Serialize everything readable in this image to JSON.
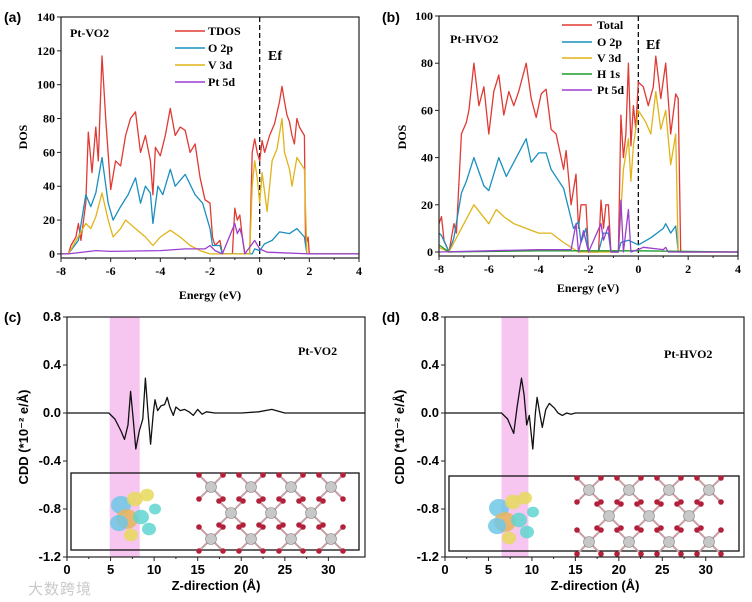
{
  "watermark": "大数跨境",
  "chart_data": [
    {
      "panel_label": "(a)",
      "type": "line",
      "title": "Pt-VO2",
      "xlabel": "Energy (eV)",
      "ylabel": "DOS",
      "xlim": [
        -8,
        4
      ],
      "ylim": [
        -2.4,
        140
      ],
      "xticks": [
        -8,
        -6,
        -4,
        -2,
        0,
        2,
        4
      ],
      "xtick_labels": [
        "-8",
        "-6",
        "-4",
        "-2",
        "0",
        "2",
        "4"
      ],
      "yticks": [
        0,
        20,
        40,
        60,
        80,
        100,
        120,
        140
      ],
      "ytick_labels": [
        "0",
        "20",
        "40",
        "60",
        "80",
        "100",
        "120",
        "140"
      ],
      "fermi_label": "Ef",
      "fermi_energy": 0,
      "legend_placement": "top-center",
      "series": [
        {
          "name": "TDOS",
          "color": "#e03a34",
          "x": [
            -8,
            -7.7,
            -7.6,
            -7.4,
            -7.3,
            -7.2,
            -7.0,
            -6.9,
            -6.75,
            -6.6,
            -6.5,
            -6.35,
            -6.2,
            -6.0,
            -5.8,
            -5.6,
            -5.4,
            -5.2,
            -5.0,
            -4.8,
            -4.6,
            -4.4,
            -4.3,
            -4.2,
            -4.0,
            -3.8,
            -3.6,
            -3.4,
            -3.2,
            -3.0,
            -2.8,
            -2.6,
            -2.4,
            -2.2,
            -2.0,
            -1.9,
            -1.8,
            -1.6,
            -1.5,
            -1.1,
            -1.0,
            -0.9,
            -0.8,
            -0.7,
            -0.6,
            -0.4,
            -0.3,
            -0.2,
            -0.1,
            0,
            0.1,
            0.2,
            0.4,
            0.6,
            0.8,
            0.9,
            1.0,
            1.1,
            1.2,
            1.3,
            1.4,
            1.5,
            1.6,
            1.8,
            1.85,
            1.95,
            2.0,
            4
          ],
          "y": [
            0,
            0,
            5,
            10,
            18,
            8,
            30,
            72,
            48,
            75,
            55,
            117,
            80,
            38,
            55,
            52,
            70,
            80,
            84,
            60,
            70,
            55,
            35,
            63,
            58,
            70,
            86,
            70,
            75,
            73,
            60,
            65,
            45,
            32,
            30,
            10,
            5,
            8,
            0,
            0,
            27,
            20,
            23,
            10,
            0,
            0,
            60,
            68,
            60,
            55,
            67,
            60,
            70,
            77,
            90,
            99,
            90,
            82,
            78,
            70,
            65,
            80,
            75,
            70,
            5,
            10,
            0,
            0
          ]
        },
        {
          "name": "O 2p",
          "color": "#1a8fc0",
          "x": [
            -8,
            -7.7,
            -7.3,
            -7.0,
            -6.8,
            -6.6,
            -6.35,
            -6.1,
            -5.9,
            -5.6,
            -5.3,
            -5.0,
            -4.8,
            -4.6,
            -4.4,
            -4.3,
            -4.1,
            -3.9,
            -3.6,
            -3.4,
            -3.0,
            -2.6,
            -2.3,
            -2.0,
            -1.9,
            -1.6,
            -1.5,
            -0.3,
            -0.2,
            0,
            0.2,
            0.5,
            0.8,
            1.2,
            1.5,
            1.8,
            1.9,
            4
          ],
          "y": [
            0,
            0,
            8,
            35,
            28,
            36,
            57,
            30,
            20,
            28,
            35,
            45,
            30,
            40,
            36,
            18,
            40,
            35,
            50,
            40,
            47,
            35,
            30,
            15,
            5,
            5,
            0,
            0,
            3,
            2,
            6,
            8,
            13,
            12,
            15,
            10,
            0,
            0
          ]
        },
        {
          "name": "V 3d",
          "color": "#e0b418",
          "x": [
            -8,
            -7.7,
            -7.0,
            -6.8,
            -6.6,
            -6.35,
            -6.1,
            -5.9,
            -5.6,
            -5.4,
            -5.0,
            -4.6,
            -4.3,
            -4.0,
            -3.6,
            -3.2,
            -2.8,
            -2.4,
            -2.0,
            -0.4,
            -0.3,
            -0.2,
            -0.1,
            0,
            0.1,
            0.3,
            0.5,
            0.7,
            0.9,
            1.0,
            1.2,
            1.3,
            1.5,
            1.8,
            1.9,
            4
          ],
          "y": [
            0,
            0,
            18,
            15,
            22,
            36,
            20,
            10,
            15,
            20,
            15,
            10,
            5,
            10,
            14,
            10,
            5,
            2,
            0,
            0,
            40,
            55,
            45,
            30,
            48,
            25,
            55,
            62,
            80,
            60,
            50,
            40,
            57,
            50,
            0,
            0
          ]
        },
        {
          "name": "Pt 5d",
          "color": "#9b3fcf",
          "x": [
            -8,
            -7.7,
            -6.6,
            -6,
            -4,
            -3,
            -2.2,
            -2,
            -1.8,
            -1.5,
            -1.0,
            -0.9,
            -0.8,
            -0.7,
            -0.6,
            -0.2,
            0,
            0.3,
            2,
            4
          ],
          "y": [
            0,
            0,
            2,
            1.5,
            2,
            3,
            3,
            5,
            2,
            0,
            18,
            12,
            15,
            10,
            0,
            8,
            3,
            1,
            0,
            0
          ]
        }
      ]
    },
    {
      "panel_label": "(b)",
      "type": "line",
      "title": "Pt-HVO2",
      "xlabel": "Energy (eV)",
      "ylabel": "DOS",
      "xlim": [
        -8,
        4
      ],
      "ylim": [
        -1.7,
        100
      ],
      "xticks": [
        -8,
        -6,
        -4,
        -2,
        0,
        2,
        4
      ],
      "xtick_labels": [
        "-8",
        "-6",
        "-4",
        "-2",
        "0",
        "2",
        "4"
      ],
      "yticks": [
        0,
        20,
        40,
        60,
        80,
        100
      ],
      "ytick_labels": [
        "0",
        "20",
        "40",
        "60",
        "80",
        "100"
      ],
      "fermi_label": "Ef",
      "fermi_energy": 0,
      "legend_placement": "top-center",
      "series": [
        {
          "name": "Total",
          "color": "#e03a34",
          "x": [
            -8,
            -7.9,
            -7.8,
            -7.6,
            -7.4,
            -7.3,
            -7.1,
            -6.9,
            -6.8,
            -6.6,
            -6.4,
            -6.2,
            -6.0,
            -5.8,
            -5.6,
            -5.4,
            -5.2,
            -5.0,
            -4.8,
            -4.5,
            -4.3,
            -4.1,
            -3.9,
            -3.7,
            -3.5,
            -3.3,
            -3.0,
            -2.9,
            -2.7,
            -2.5,
            -2.4,
            -2.3,
            -2.1,
            -2.0,
            -1.6,
            -1.5,
            -1.4,
            -1.3,
            -1.2,
            -1.1,
            -0.8,
            -0.7,
            -0.6,
            -0.5,
            -0.4,
            -0.3,
            -0.2,
            -0.1,
            0,
            0.2,
            0.4,
            0.6,
            0.7,
            0.9,
            1.1,
            1.3,
            1.5,
            1.6,
            1.7,
            4
          ],
          "y": [
            12,
            15,
            5,
            0,
            12,
            8,
            50,
            55,
            60,
            80,
            62,
            70,
            50,
            68,
            75,
            58,
            68,
            62,
            68,
            80,
            65,
            57,
            67,
            69,
            52,
            50,
            35,
            43,
            20,
            33,
            10,
            20,
            20,
            0,
            0,
            22,
            10,
            20,
            20,
            0,
            0,
            58,
            40,
            50,
            80,
            45,
            62,
            52,
            72,
            70,
            62,
            70,
            83,
            65,
            80,
            50,
            67,
            65,
            0,
            0
          ]
        },
        {
          "name": "O 2p",
          "color": "#1a8fc0",
          "x": [
            -8,
            -7.9,
            -7.6,
            -7.4,
            -7.1,
            -6.9,
            -6.6,
            -6.2,
            -6.0,
            -5.6,
            -5.3,
            -5.0,
            -4.5,
            -4.3,
            -4.0,
            -3.7,
            -3.5,
            -3.0,
            -2.6,
            -2.4,
            -2.3,
            -2.1,
            -2.0,
            -1.6,
            -1.4,
            -1.2,
            -1.1,
            -0.8,
            -0.7,
            -0.4,
            0,
            0.5,
            1.0,
            1.1,
            1.3,
            1.5,
            1.6,
            4
          ],
          "y": [
            8,
            7,
            0,
            6,
            25,
            30,
            40,
            28,
            26,
            40,
            32,
            38,
            48,
            38,
            42,
            42,
            35,
            27,
            10,
            13,
            4,
            10,
            0,
            0,
            8,
            8,
            0,
            0,
            4,
            5,
            3,
            6,
            10,
            12,
            8,
            11,
            0,
            0
          ]
        },
        {
          "name": "V 3d",
          "color": "#e0b418",
          "x": [
            -8,
            -7.6,
            -7.1,
            -6.6,
            -6.0,
            -5.7,
            -5.4,
            -5.0,
            -4.5,
            -4.0,
            -3.5,
            -3.0,
            -2.7,
            -2.4,
            -0.8,
            -0.6,
            -0.4,
            -0.3,
            -0.2,
            0,
            0.3,
            0.5,
            0.7,
            0.9,
            1.1,
            1.3,
            1.5,
            1.6,
            4
          ],
          "y": [
            2,
            0,
            10,
            20,
            12,
            18,
            15,
            12,
            10,
            8,
            8,
            4,
            2,
            0,
            0,
            35,
            48,
            30,
            45,
            60,
            55,
            50,
            68,
            52,
            60,
            37,
            50,
            0,
            0
          ]
        },
        {
          "name": "H 1s",
          "color": "#1f9a2a",
          "x": [
            -8,
            -7.6,
            -4,
            0,
            4
          ],
          "y": [
            3,
            0,
            0.5,
            0.5,
            0
          ]
        },
        {
          "name": "Pt 5d",
          "color": "#9b3fcf",
          "x": [
            -8,
            -4,
            -2.7,
            -2.5,
            -2.4,
            -2.2,
            -2.0,
            -1.5,
            -1.4,
            -1.2,
            -1.1,
            -0.8,
            -0.7,
            -0.6,
            -0.4,
            -0.3,
            0,
            0.2,
            1.0,
            1.1,
            1.2,
            4
          ],
          "y": [
            0,
            1,
            1,
            12,
            0,
            9,
            0,
            12,
            5,
            11,
            0,
            0,
            22,
            0,
            18,
            0,
            1,
            2,
            1,
            2,
            0,
            0
          ]
        }
      ]
    },
    {
      "panel_label": "(c)",
      "type": "line",
      "title": "Pt-VO2",
      "xlabel": "Z-direction (Å)",
      "ylabel": "CDD (*10⁻² e/Å)",
      "xlim": [
        0,
        34.2
      ],
      "ylim": [
        -1.2,
        0.8
      ],
      "xticks": [
        0,
        5,
        10,
        15,
        20,
        25,
        30
      ],
      "xtick_labels": [
        "0",
        "5",
        "10",
        "15",
        "20",
        "25",
        "30"
      ],
      "yticks": [
        0.8,
        0.4,
        0.0,
        -0.4,
        -0.8,
        -1.2
      ],
      "ytick_labels": [
        "0.8",
        "0.4",
        "0.0",
        "-0.4",
        "-0.8",
        "-1.2"
      ],
      "highlight_band": [
        4.9,
        8.35
      ],
      "highlight_color": "#f7c6f0",
      "series": [
        {
          "name": "CDD",
          "color": "#111111",
          "x": [
            0,
            4.8,
            5.5,
            6.2,
            6.6,
            7.0,
            7.3,
            7.6,
            7.9,
            8.3,
            8.7,
            9.0,
            9.3,
            9.6,
            9.9,
            10.1,
            10.4,
            10.8,
            11.2,
            11.5,
            11.8,
            12.2,
            12.5,
            13,
            13.5,
            14,
            14.5,
            15,
            15.5,
            16,
            17,
            20,
            22,
            23.5,
            25,
            34.2
          ],
          "y": [
            0,
            0,
            -0.05,
            -0.15,
            -0.22,
            -0.1,
            0.18,
            -0.05,
            -0.3,
            -0.15,
            -0.05,
            0.29,
            0,
            -0.26,
            0,
            0.11,
            0.02,
            0.06,
            0.07,
            0.13,
            0.05,
            -0.02,
            0.05,
            0.02,
            0.03,
            0.01,
            -0.02,
            0.03,
            -0.01,
            0.01,
            0,
            0,
            0.01,
            0.03,
            0,
            0
          ]
        }
      ]
    },
    {
      "panel_label": "(d)",
      "type": "line",
      "title": "Pt-HVO2",
      "xlabel": "Z-direction (Å)",
      "ylabel": "CDD (*10⁻² e/Å)",
      "xlim": [
        0,
        34.4
      ],
      "ylim": [
        -1.2,
        0.8
      ],
      "xticks": [
        0,
        5,
        10,
        15,
        20,
        25,
        30
      ],
      "xtick_labels": [
        "0",
        "5",
        "10",
        "15",
        "20",
        "25",
        "30"
      ],
      "yticks": [
        0.8,
        0.4,
        0.0,
        -0.4,
        -0.8,
        -1.2
      ],
      "ytick_labels": [
        "0.8",
        "0.4",
        "0.0",
        "-0.4",
        "-0.8",
        "-1.2"
      ],
      "highlight_band": [
        6.5,
        9.6
      ],
      "highlight_color": "#f7c6f0",
      "series": [
        {
          "name": "CDD",
          "color": "#111111",
          "x": [
            0,
            6.5,
            7.2,
            7.9,
            8.3,
            8.8,
            9.1,
            9.4,
            9.7,
            10.1,
            10.4,
            10.6,
            10.9,
            11.2,
            11.6,
            12,
            12.6,
            13,
            13.5,
            14,
            14.5,
            15,
            34.4
          ],
          "y": [
            0,
            0,
            -0.05,
            -0.17,
            0.05,
            0.29,
            0.15,
            -0.1,
            -0.02,
            -0.3,
            0,
            0.13,
            0,
            -0.12,
            0.03,
            0.08,
            0.04,
            0,
            -0.02,
            0,
            -0.01,
            0,
            0
          ]
        }
      ]
    }
  ]
}
